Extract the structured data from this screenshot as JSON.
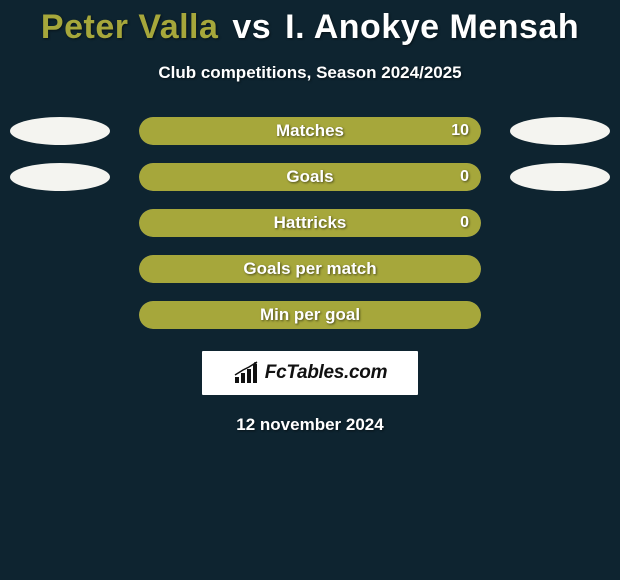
{
  "background_color": "#0e2430",
  "title": {
    "player1": "Peter Valla",
    "player1_color": "#a6a73b",
    "vs_text": "vs",
    "vs_color": "#ffffff",
    "player2": "I. Anokye Mensah",
    "player2_color": "#ffffff"
  },
  "subtitle": "Club competitions, Season 2024/2025",
  "stats": [
    {
      "label": "Matches",
      "value": "10",
      "track_color": "#4a5560",
      "fill_color": "#a6a73b",
      "fill_side": "left",
      "fill_pct": 100,
      "left_bubble_color": "#f4f4f0",
      "right_bubble_color": "#f4f4f0",
      "show_left_bubble": true,
      "show_right_bubble": true
    },
    {
      "label": "Goals",
      "value": "0",
      "track_color": "#4a5560",
      "fill_color": "#a6a73b",
      "fill_side": "left",
      "fill_pct": 100,
      "left_bubble_color": "#f4f4f0",
      "right_bubble_color": "#f4f4f0",
      "show_left_bubble": true,
      "show_right_bubble": true
    },
    {
      "label": "Hattricks",
      "value": "0",
      "track_color": "#4a5560",
      "fill_color": "#a6a73b",
      "fill_side": "left",
      "fill_pct": 100,
      "left_bubble_color": "",
      "right_bubble_color": "",
      "show_left_bubble": false,
      "show_right_bubble": false
    },
    {
      "label": "Goals per match",
      "value": "",
      "track_color": "#4a5560",
      "fill_color": "#a6a73b",
      "fill_side": "left",
      "fill_pct": 100,
      "left_bubble_color": "",
      "right_bubble_color": "",
      "show_left_bubble": false,
      "show_right_bubble": false
    },
    {
      "label": "Min per goal",
      "value": "",
      "track_color": "#4a5560",
      "fill_color": "#a6a73b",
      "fill_side": "left",
      "fill_pct": 100,
      "left_bubble_color": "",
      "right_bubble_color": "",
      "show_left_bubble": false,
      "show_right_bubble": false
    }
  ],
  "logo": {
    "text": "FcTables.com",
    "icon_color": "#111111",
    "box_bg": "#ffffff"
  },
  "date_text": "12 november 2024"
}
